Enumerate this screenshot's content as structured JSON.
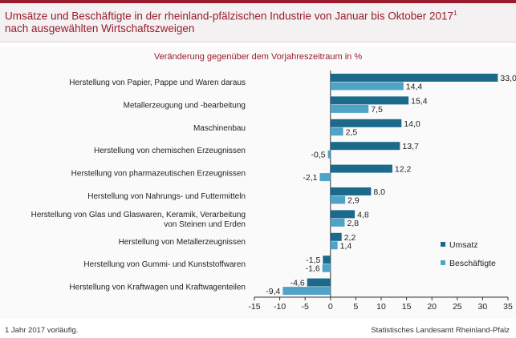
{
  "header": {
    "title_line1": "Umsätze und Beschäftigte in der rheinland-pfälzischen Industrie von Januar bis Oktober 2017",
    "title_sup": "1",
    "title_line2": "nach ausgewählten Wirtschaftszweigen"
  },
  "footer": {
    "footnote": "1 Jahr 2017 vorläufig.",
    "source": "Statistisches Landesamt Rheinland-Pfalz"
  },
  "colors": {
    "accent": "#9b1c2e",
    "umsatz": "#1b6a8c",
    "beschaeftigte": "#4fa3c7"
  },
  "chart_data": {
    "type": "bar",
    "orientation": "horizontal",
    "title": "Veränderung gegenüber dem Vorjahreszeitraum in %",
    "categories": [
      "Herstellung von Papier, Pappe und Waren daraus",
      "Metallerzeugung und -bearbeitung",
      "Maschinenbau",
      "Herstellung von chemischen Erzeugnissen",
      "Herstellung von pharmazeutischen Erzeugnissen",
      "Herstellung von Nahrungs- und Futtermitteln",
      "Herstellung von Glas und Glaswaren, Keramik, Verarbeitung von Steinen und Erden",
      "Herstellung von Metallerzeugnissen",
      "Herstellung von Gummi- und Kunststoffwaren",
      "Herstellung von Kraftwagen und Kraftwagenteilen"
    ],
    "series": [
      {
        "name": "Umsatz",
        "values": [
          33.0,
          15.4,
          14.0,
          13.7,
          12.2,
          8.0,
          4.8,
          2.2,
          -1.5,
          -4.6
        ],
        "labels": [
          "33,0",
          "15,4",
          "14,0",
          "13,7",
          "12,2",
          "8,0",
          "4,8",
          "2,2",
          "-1,5",
          "-4,6"
        ]
      },
      {
        "name": "Beschäftigte",
        "values": [
          14.4,
          7.5,
          2.5,
          -0.5,
          -2.1,
          2.9,
          2.8,
          1.4,
          -1.6,
          -9.4
        ],
        "labels": [
          "14,4",
          "7,5",
          "2,5",
          "-0,5",
          "-2,1",
          "2,9",
          "2,8",
          "1,4",
          "-1,6",
          "-9,4"
        ]
      }
    ],
    "xlim": [
      -15,
      35
    ],
    "xticks": [
      -15,
      -10,
      -5,
      0,
      5,
      10,
      15,
      20,
      25,
      30,
      35
    ],
    "legend_position": "bottom-right",
    "grid": false
  }
}
